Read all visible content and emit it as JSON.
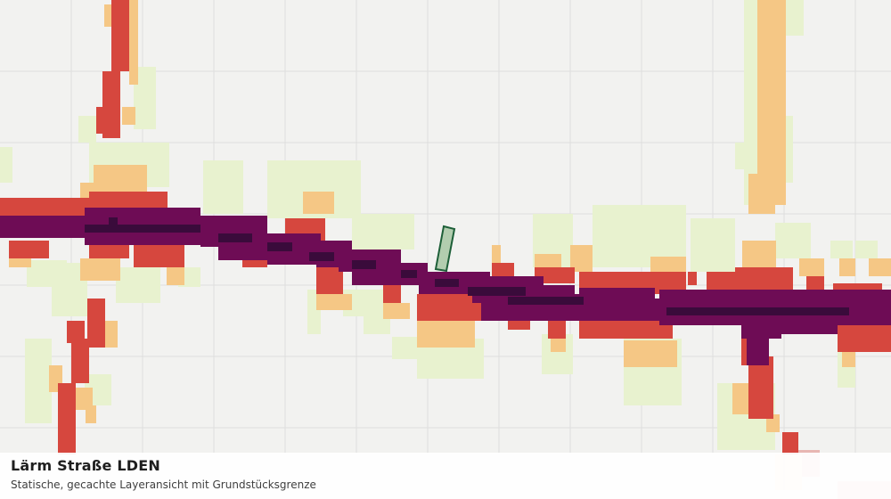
{
  "caption": {
    "title": "Lärm Straße LDEN",
    "subtitle": "Statische, gecachte Layeransicht mit Grundstücksgrenze"
  },
  "map": {
    "background_color": "#f2f2f0",
    "grid_color": "#dedede",
    "noise_class_colors": {
      "lowest": "#e8f2cf",
      "low": "#f5c785",
      "medium": "#d6473e",
      "high": "#6e0c55",
      "highest": "#3a0b3b"
    },
    "parcel_boundary": {
      "fill": "#a7c7a3",
      "stroke": "#1d5f38"
    }
  }
}
